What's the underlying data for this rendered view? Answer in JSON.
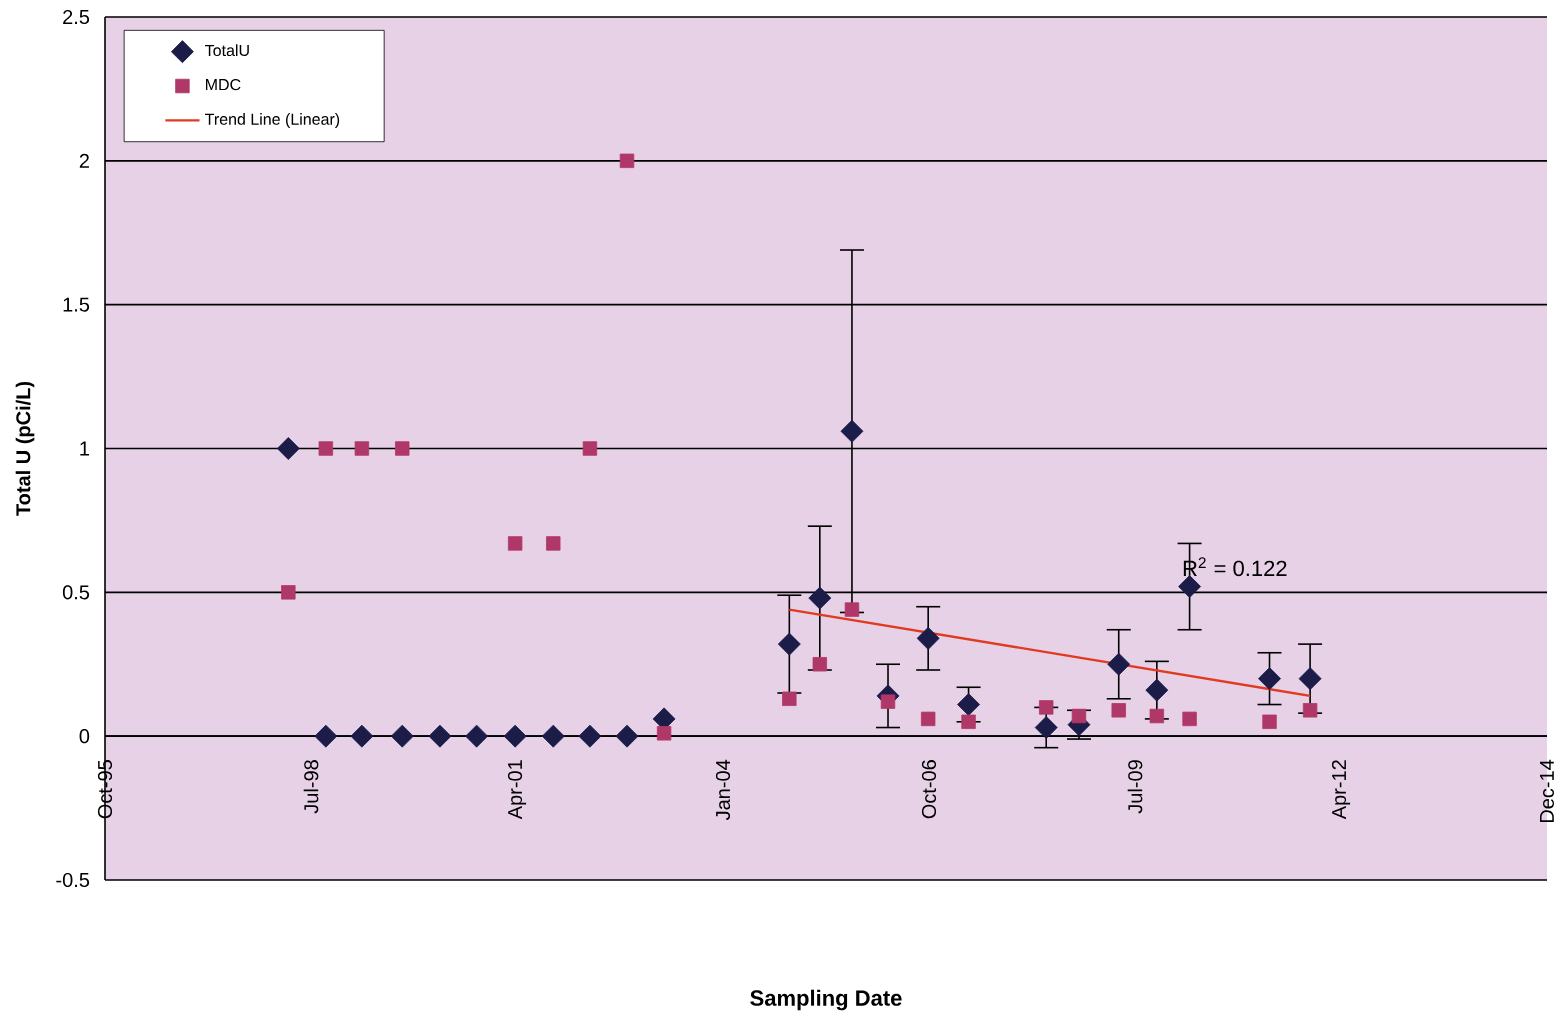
{
  "chart_data": {
    "type": "scatter",
    "xlabel": "Sampling Date",
    "ylabel": "Total U (pCi/L)",
    "x": [
      "1998-04-05",
      "1998-10-04",
      "1999-03-28",
      "1999-10-10",
      "2000-04-10",
      "2000-10-05",
      "2001-04-10",
      "2001-10-12",
      "2002-04-08",
      "2002-10-05",
      "2003-04-03",
      "2004-12-01",
      "2005-04-28",
      "2005-10-01",
      "2006-03-25",
      "2006-10-06",
      "2007-04-20",
      "2008-05-01",
      "2008-10-07",
      "2009-04-18",
      "2009-10-20",
      "2010-03-28",
      "2011-04-20",
      "2011-11-03"
    ],
    "series": [
      {
        "name": "TotalU",
        "color": "#1c1c48",
        "marker": "diamond",
        "values": [
          1.0,
          0.0,
          0.0,
          0.0,
          0.0,
          0.0,
          0.0,
          0.0,
          0.0,
          0.0,
          0.06,
          0.32,
          0.48,
          1.06,
          0.14,
          0.34,
          0.11,
          0.03,
          0.04,
          0.25,
          0.16,
          0.52,
          0.2,
          0.2
        ],
        "errors": [
          null,
          null,
          null,
          null,
          null,
          null,
          null,
          null,
          null,
          null,
          null,
          0.17,
          0.25,
          0.63,
          0.11,
          0.11,
          0.06,
          0.07,
          0.05,
          0.12,
          0.1,
          0.15,
          0.09,
          0.12
        ]
      },
      {
        "name": "MDC",
        "color": "#b03868",
        "marker": "square",
        "values": [
          0.5,
          1.0,
          1.0,
          1.0,
          null,
          null,
          0.67,
          0.67,
          1.0,
          2.0,
          0.01,
          0.13,
          0.25,
          0.44,
          0.12,
          0.06,
          0.05,
          0.1,
          0.07,
          0.09,
          0.07,
          0.06,
          0.05,
          0.09
        ]
      },
      {
        "name": "Trend Line (Linear)",
        "type": "line",
        "color": "#e03a20",
        "marker": "none",
        "x": [
          "2004-12-01",
          "2011-11-03"
        ],
        "values": [
          0.44,
          0.14
        ]
      }
    ],
    "annotations": [
      "R$^{2}$ = 0.122"
    ],
    "xlim": [
      "1995-10-28",
      "2014-12-27"
    ],
    "xticks": [
      {
        "value": "1995-10-28",
        "label": "Oct-95"
      },
      {
        "value": "1998-07-24",
        "label": "Jul-98"
      },
      {
        "value": "2001-04-19",
        "label": "Apr-01"
      },
      {
        "value": "2004-01-14",
        "label": "Jan-04"
      },
      {
        "value": "2006-10-10",
        "label": "Oct-06"
      },
      {
        "value": "2009-07-06",
        "label": "Jul-09"
      },
      {
        "value": "2012-04-01",
        "label": "Apr-12"
      },
      {
        "value": "2014-12-27",
        "label": "Dec-14"
      }
    ],
    "ylim": [
      -0.5,
      2.5
    ],
    "yticks": [
      -0.5,
      0,
      0.5,
      1,
      1.5,
      2,
      2.5
    ],
    "grid": "y",
    "legend": "top left"
  }
}
